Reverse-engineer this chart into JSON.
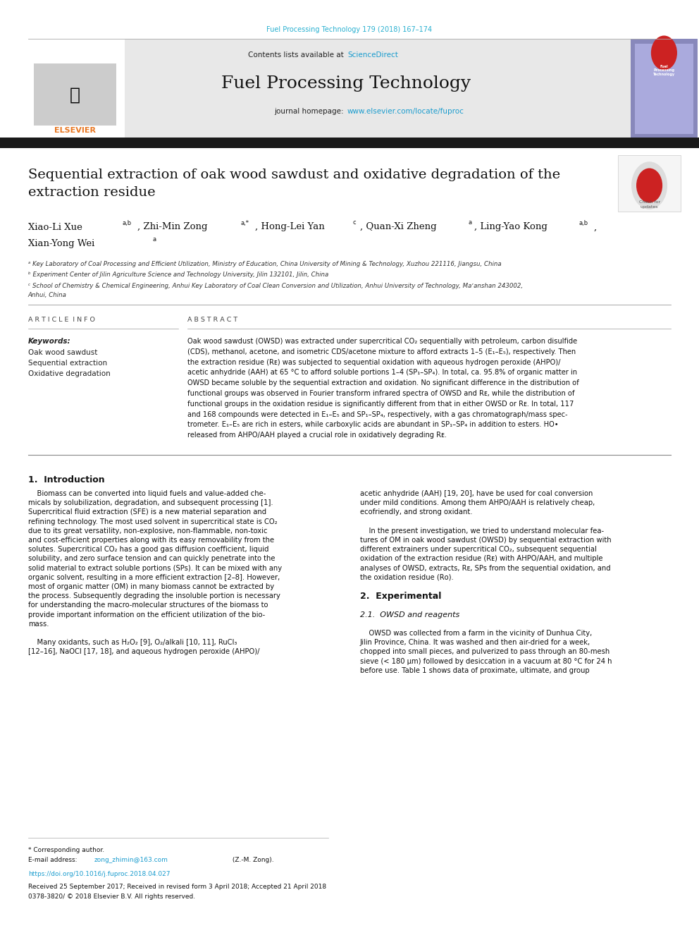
{
  "page_width": 9.92,
  "page_height": 13.23,
  "background_color": "#ffffff",
  "journal_ref_color": "#29b0d0",
  "journal_ref_text": "Fuel Processing Technology 179 (2018) 167–174",
  "header_bg_color": "#e8e8e8",
  "journal_title": "Fuel Processing Technology",
  "contents_text": "Contents lists available at ",
  "sciencedirect_text": "ScienceDirect",
  "sciencedirect_color": "#1a9cce",
  "journal_homepage_text": "journal homepage: ",
  "journal_url": "www.elsevier.com/locate/fuproc",
  "journal_url_color": "#1a9cce",
  "black_bar_color": "#1a1a1a",
  "paper_title_line1": "Sequential extraction of oak wood sawdust and oxidative degradation of the",
  "paper_title_line2": "extraction residue",
  "article_info_label": "A R T I C L E  I N F O",
  "abstract_label": "A B S T R A C T",
  "keywords_label": "Keywords:",
  "keyword1": "Oak wood sawdust",
  "keyword2": "Sequential extraction",
  "keyword3": "Oxidative degradation",
  "section1_title": "1.  Introduction",
  "section2_title": "2.  Experimental",
  "section21_title": "2.1.  OWSD and reagents",
  "corresponding_author_text": "* Corresponding author.",
  "email_label": "E-mail address: ",
  "email_text": "zong_zhimin@163.com",
  "email_color": "#1a9cce",
  "email_suffix": " (Z.-M. Zong).",
  "doi_text": "https://doi.org/10.1016/j.fuproc.2018.04.027",
  "doi_color": "#1a9cce",
  "received_text": "Received 25 September 2017; Received in revised form 3 April 2018; Accepted 21 April 2018",
  "footer_text": "0378-3820/ © 2018 Elsevier B.V. All rights reserved.",
  "elsevier_orange": "#e87722",
  "affil_a": "ᵃ Key Laboratory of Coal Processing and Efficient Utilization, Ministry of Education, China University of Mining & Technology, Xuzhou 221116, Jiangsu, China",
  "affil_b": "ᵇ Experiment Center of Jilin Agriculture Science and Technology University, Jilin 132101, Jilin, China",
  "affil_c1": "ᶜ School of Chemistry & Chemical Engineering, Anhui Key Laboratory of Coal Clean Conversion and Utilization, Anhui University of Technology, Maʼanshan 243002,",
  "affil_c2": "Anhui, China",
  "abstract_lines": [
    "Oak wood sawdust (OWSD) was extracted under supercritical CO₂ sequentially with petroleum, carbon disulfide",
    "(CDS), methanol, acetone, and isometric CDS/acetone mixture to afford extracts 1–5 (E₁–E₅), respectively. Then",
    "the extraction residue (Rᴇ) was subjected to sequential oxidation with aqueous hydrogen peroxide (AHPO)/",
    "acetic anhydride (AAH) at 65 °C to afford soluble portions 1–4 (SP₁–SP₄). In total, ca. 95.8% of organic matter in",
    "OWSD became soluble by the sequential extraction and oxidation. No significant difference in the distribution of",
    "functional groups was observed in Fourier transform infrared spectra of OWSD and Rᴇ, while the distribution of",
    "functional groups in the oxidation residue is significantly different from that in either OWSD or Rᴇ. In total, 117",
    "and 168 compounds were detected in E₁–E₅ and SP₁–SP₄, respectively, with a gas chromatograph/mass spec-",
    "trometer. E₁–E₅ are rich in esters, while carboxylic acids are abundant in SP₁–SP₄ in addition to esters. HO•",
    "released from AHPO/AAH played a crucial role in oxidatively degrading Rᴇ."
  ],
  "intro_col1_lines": [
    "    Biomass can be converted into liquid fuels and value-added che-",
    "micals by solubilization, degradation, and subsequent processing [1].",
    "Supercritical fluid extraction (SFE) is a new material separation and",
    "refining technology. The most used solvent in supercritical state is CO₂",
    "due to its great versatility, non-explosive, non-flammable, non-toxic",
    "and cost-efficient properties along with its easy removability from the",
    "solutes. Supercritical CO₂ has a good gas diffusion coefficient, liquid",
    "solubility, and zero surface tension and can quickly penetrate into the",
    "solid material to extract soluble portions (SPs). It can be mixed with any",
    "organic solvent, resulting in a more efficient extraction [2–8]. However,",
    "most of organic matter (OM) in many biomass cannot be extracted by",
    "the process. Subsequently degrading the insoluble portion is necessary",
    "for understanding the macro-molecular structures of the biomass to",
    "provide important information on the efficient utilization of the bio-",
    "mass.",
    "",
    "    Many oxidants, such as H₂O₂ [9], O₂/alkali [10, 11], RuCl₃",
    "[12–16], NaOCl [17, 18], and aqueous hydrogen peroxide (AHPO)/"
  ],
  "intro_col2_lines": [
    "acetic anhydride (AAH) [19, 20], have be used for coal conversion",
    "under mild conditions. Among them AHPO/AAH is relatively cheap,",
    "ecofriendly, and strong oxidant.",
    "",
    "    In the present investigation, we tried to understand molecular fea-",
    "tures of OM in oak wood sawdust (OWSD) by sequential extraction with",
    "different extrainers under supercritical CO₂, subsequent sequential",
    "oxidation of the extraction residue (Rᴇ) with AHPO/AAH, and multiple",
    "analyses of OWSD, extracts, Rᴇ, SPs from the sequential oxidation, and",
    "the oxidation residue (Rᴏ).",
    "",
    "2.  Experimental",
    "",
    "2.1.  OWSD and reagents",
    "",
    "    OWSD was collected from a farm in the vicinity of Dunhua City,",
    "Jilin Province, China. It was washed and then air-dried for a week,",
    "chopped into small pieces, and pulverized to pass through an 80-mesh",
    "sieve (< 180 μm) followed by desiccation in a vacuum at 80 °C for 24 h",
    "before use. Table 1 shows data of proximate, ultimate, and group"
  ]
}
